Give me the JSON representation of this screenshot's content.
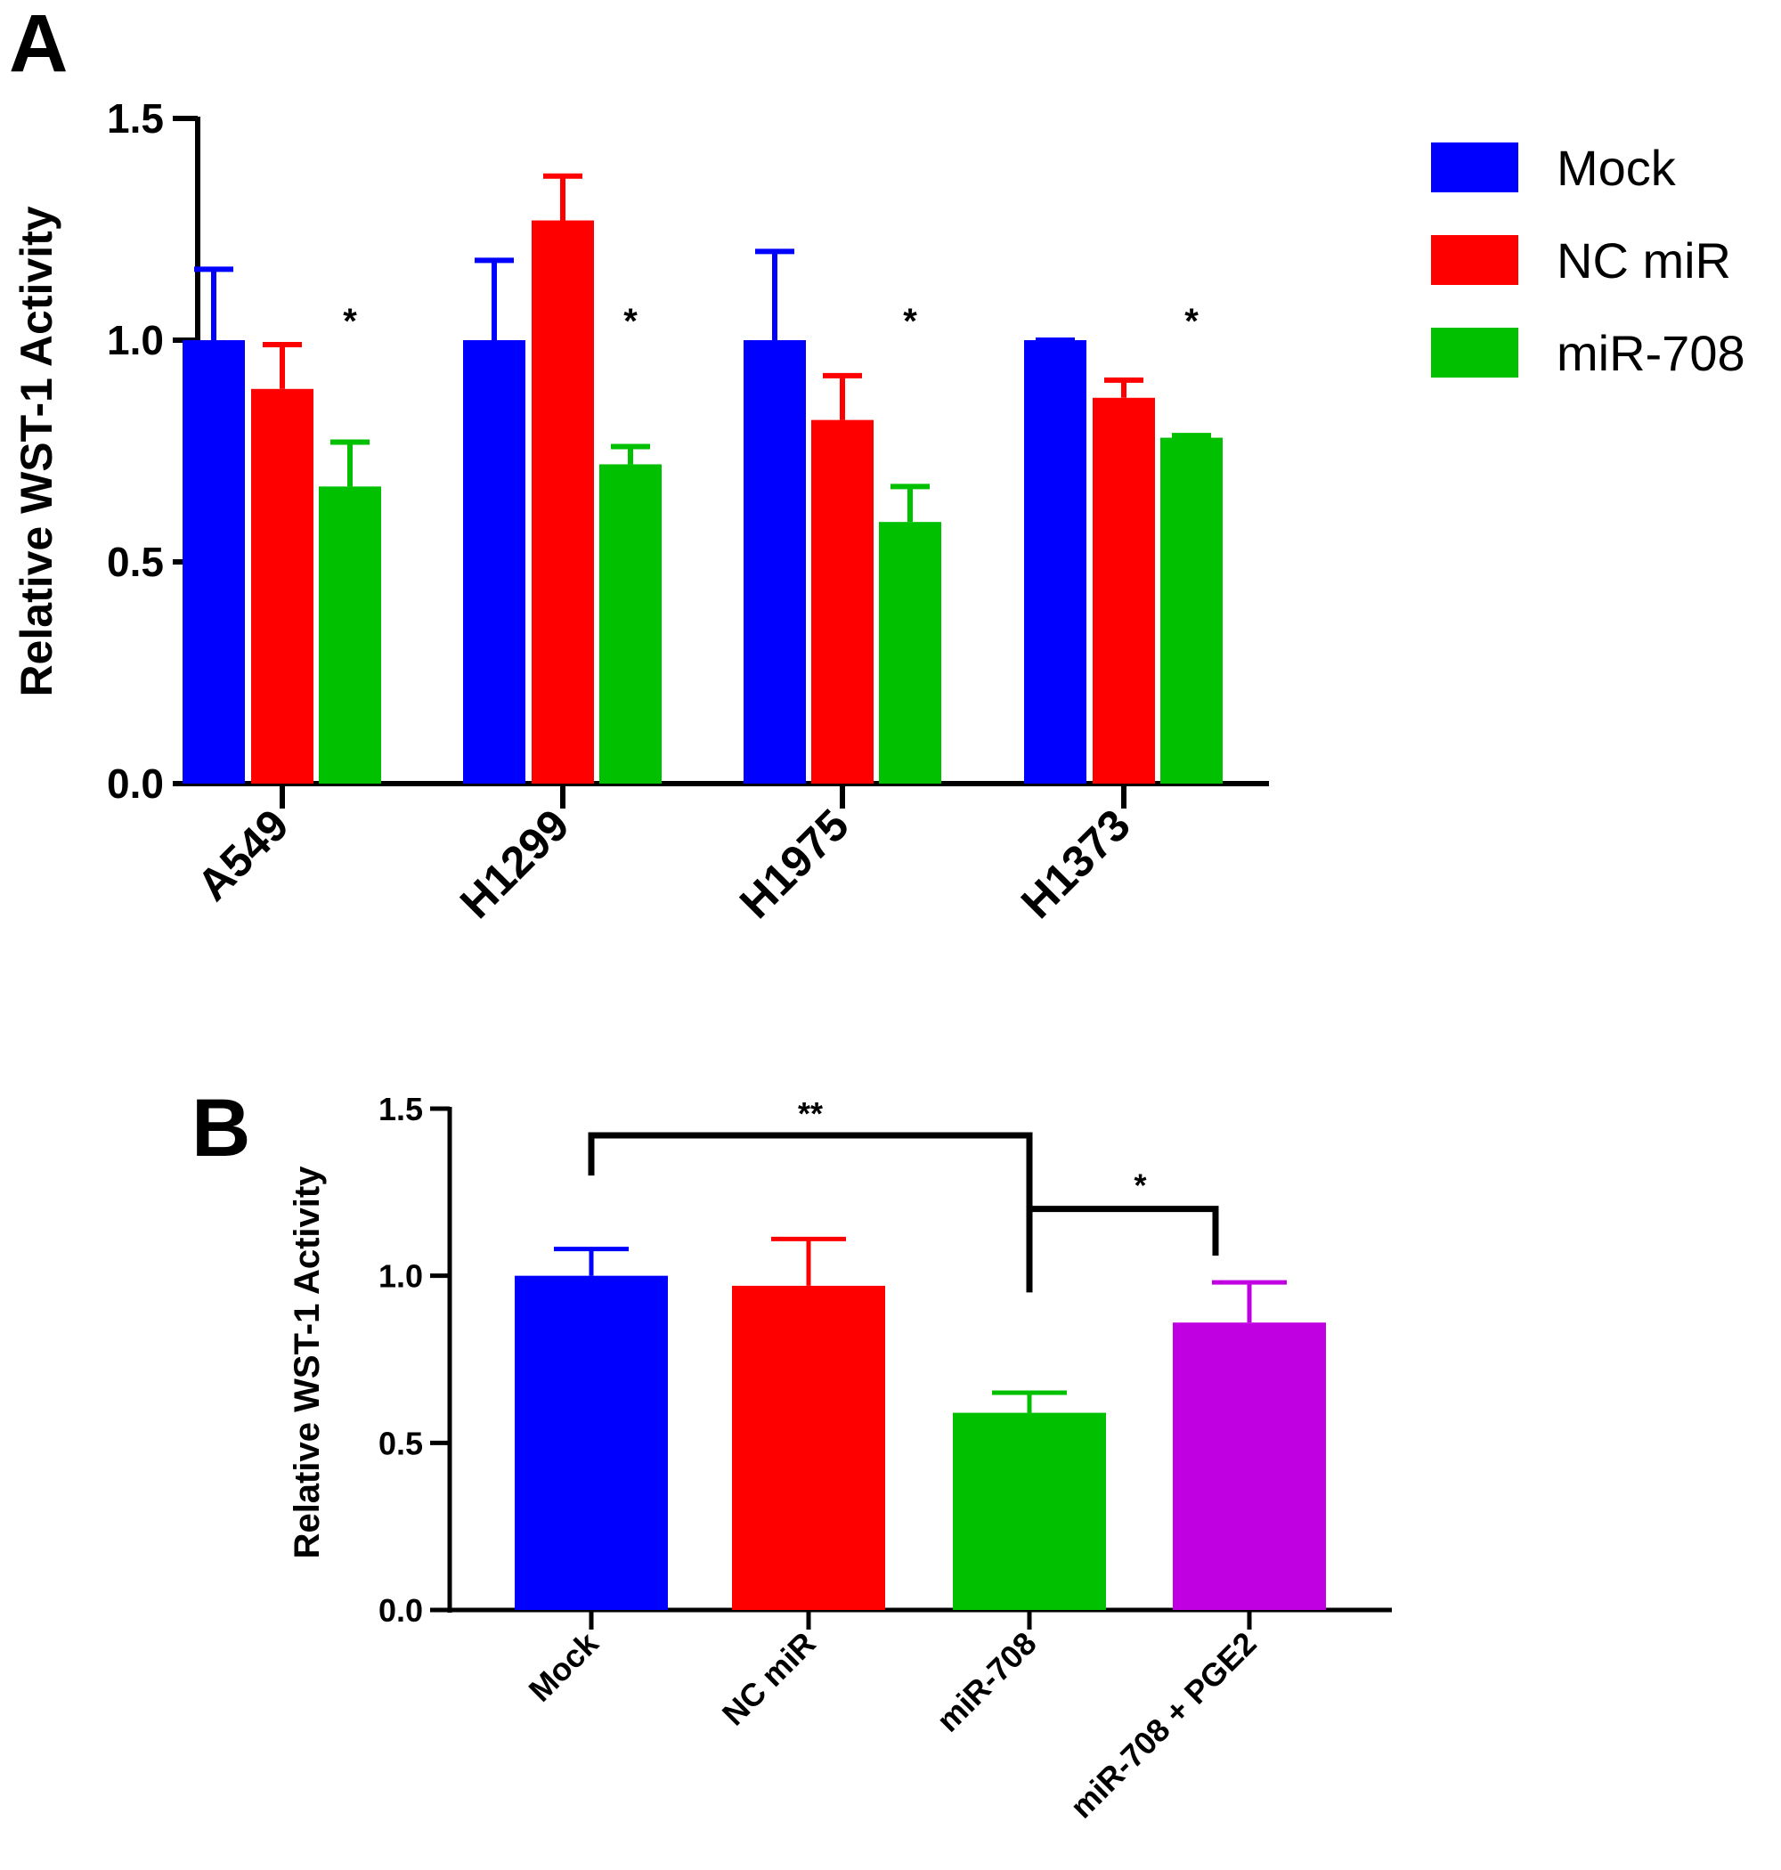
{
  "chart_data": [
    {
      "panel": "A",
      "type": "bar",
      "title": "",
      "xlabel": "",
      "ylabel": "Relative WST-1 Activity",
      "ylim": [
        0,
        1.5
      ],
      "yticks": [
        "0.0",
        "0.5",
        "1.0",
        "1.5"
      ],
      "categories": [
        "A549",
        "H1299",
        "H1975",
        "H1373"
      ],
      "series": [
        {
          "name": "Mock",
          "color": "#0000ff",
          "values": [
            1.0,
            1.0,
            1.0,
            1.0
          ],
          "errors": [
            0.16,
            0.18,
            0.2,
            0.0
          ]
        },
        {
          "name": "NC miR",
          "color": "#ff0000",
          "values": [
            0.89,
            1.27,
            0.82,
            0.87
          ],
          "errors": [
            0.1,
            0.1,
            0.1,
            0.04
          ]
        },
        {
          "name": "miR-708",
          "color": "#00c000",
          "values": [
            0.67,
            0.72,
            0.59,
            0.78
          ],
          "errors": [
            0.1,
            0.04,
            0.08,
            0.005
          ]
        }
      ],
      "annotations": [
        "*",
        "*",
        "*",
        "*"
      ],
      "legend": "right"
    },
    {
      "panel": "B",
      "type": "bar",
      "title": "",
      "xlabel": "",
      "ylabel": "Relative WST-1 Activity",
      "ylim": [
        0,
        1.5
      ],
      "yticks": [
        "0.0",
        "0.5",
        "1.0",
        "1.5"
      ],
      "categories": [
        "Mock",
        "NC miR",
        "miR-708",
        "miR-708 + PGE2"
      ],
      "values": [
        1.0,
        0.97,
        0.59,
        0.86
      ],
      "errors": [
        0.08,
        0.14,
        0.06,
        0.12
      ],
      "colors": [
        "#0000ff",
        "#ff0000",
        "#00c000",
        "#c000e0"
      ],
      "brackets": [
        {
          "from": 0,
          "to": 2,
          "label": "**"
        },
        {
          "from": 2,
          "to": 3,
          "label": "*"
        }
      ]
    }
  ]
}
